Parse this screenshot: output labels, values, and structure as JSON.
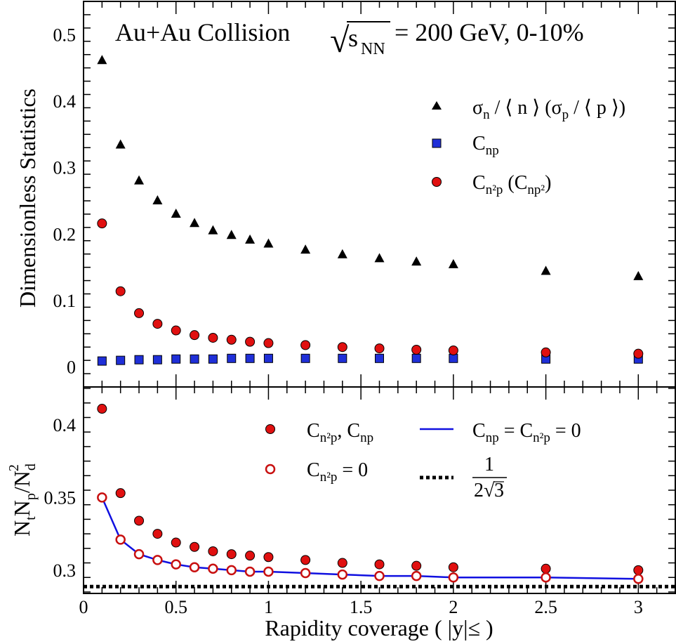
{
  "chart_data": [
    {
      "type": "scatter",
      "panel": "top",
      "title_prefix": "Au+Au Collision",
      "title_sqrt_symbol": "√",
      "title_sqrt_s": "s",
      "title_sqrt_sub": "NN",
      "title_suffix": "= 200 GeV, 0-10%",
      "ylabel": "Dimensionless Statistics",
      "ylim": [
        -0.03,
        0.55
      ],
      "yticks": [
        0,
        0.1,
        0.2,
        0.3,
        0.4,
        0.5
      ],
      "ytick_labels": [
        "0",
        "0.1",
        "0.2",
        "0.3",
        "0.4",
        "0.5"
      ],
      "x": [
        0.1,
        0.2,
        0.3,
        0.4,
        0.5,
        0.6,
        0.7,
        0.8,
        0.9,
        1.0,
        1.2,
        1.4,
        1.6,
        1.8,
        2.0,
        2.5,
        3.0
      ],
      "series": [
        {
          "key": "sigma",
          "marker": "triangle",
          "color": "#000000",
          "values": [
            0.462,
            0.335,
            0.281,
            0.251,
            0.231,
            0.217,
            0.206,
            0.199,
            0.192,
            0.186,
            0.177,
            0.17,
            0.164,
            0.159,
            0.155,
            0.145,
            0.137
          ],
          "legend_parts": [
            "σ",
            "n",
            " / ⟨ n ⟩  (σ",
            "p",
            " / ⟨ p ⟩)"
          ]
        },
        {
          "key": "cnp",
          "marker": "square",
          "color": "#1f2fd8",
          "values": [
            0.009,
            0.01,
            0.011,
            0.011,
            0.012,
            0.012,
            0.012,
            0.013,
            0.013,
            0.013,
            0.013,
            0.013,
            0.013,
            0.013,
            0.013,
            0.012,
            0.012
          ],
          "legend_parts": [
            "C",
            "np"
          ]
        },
        {
          "key": "cn2p",
          "marker": "circle",
          "color": "#e01010",
          "values": [
            0.216,
            0.114,
            0.081,
            0.065,
            0.055,
            0.048,
            0.044,
            0.041,
            0.038,
            0.036,
            0.033,
            0.03,
            0.028,
            0.026,
            0.025,
            0.022,
            0.02
          ],
          "legend_parts": [
            "C",
            "n²p",
            "  (C",
            "np²",
            ")"
          ]
        }
      ]
    },
    {
      "type": "scatter",
      "panel": "bottom",
      "ylabel_parts": [
        "N",
        "t",
        "N",
        "p",
        "/N",
        "d",
        "2"
      ],
      "xlabel": "Rapidity coverage ( |y|≤ )",
      "xlim": [
        0,
        3.2
      ],
      "xticks": [
        0,
        0.5,
        1,
        1.5,
        2,
        2.5,
        3
      ],
      "xtick_labels": [
        "0",
        "0.5",
        "1",
        "1.5",
        "2",
        "2.5",
        "3"
      ],
      "ylim": [
        0.284,
        0.426
      ],
      "yticks": [
        0.3,
        0.35,
        0.4
      ],
      "ytick_labels": [
        "0.3",
        "0.35",
        "0.4"
      ],
      "x": [
        0.1,
        0.2,
        0.3,
        0.4,
        0.5,
        0.6,
        0.7,
        0.8,
        0.9,
        1.0,
        1.2,
        1.4,
        1.6,
        1.8,
        2.0,
        2.5,
        3.0
      ],
      "series": [
        {
          "key": "both",
          "marker": "circle",
          "color": "#e01010",
          "values": [
            0.411,
            0.353,
            0.334,
            0.325,
            0.319,
            0.316,
            0.313,
            0.311,
            0.31,
            0.309,
            0.307,
            0.305,
            0.304,
            0.303,
            0.302,
            0.301,
            0.3
          ],
          "legend_parts": [
            "C",
            "n²p",
            ", C",
            "np"
          ]
        },
        {
          "key": "cn2p_zero",
          "marker": "open-circle",
          "color": "#c81010",
          "values": [
            0.35,
            0.321,
            0.311,
            0.307,
            0.304,
            0.302,
            0.301,
            0.3,
            0.299,
            0.299,
            0.298,
            0.297,
            0.296,
            0.296,
            0.295,
            0.295,
            0.294
          ],
          "legend_parts": [
            "C",
            "n²p",
            " = 0"
          ]
        },
        {
          "key": "line",
          "marker": "line",
          "color": "#1010e0",
          "values": [
            0.35,
            0.321,
            0.311,
            0.307,
            0.304,
            0.302,
            0.301,
            0.3,
            0.299,
            0.299,
            0.298,
            0.297,
            0.296,
            0.296,
            0.295,
            0.295,
            0.294
          ],
          "legend_parts": [
            "C",
            "np",
            " = C",
            "n²p",
            " = 0"
          ]
        }
      ],
      "reference_line": {
        "value": 0.2887,
        "style": "dotted",
        "color": "#000000",
        "legend_numerator": "1",
        "legend_denominator": "2",
        "legend_sqrt": "√",
        "legend_radicand": "3"
      }
    }
  ]
}
